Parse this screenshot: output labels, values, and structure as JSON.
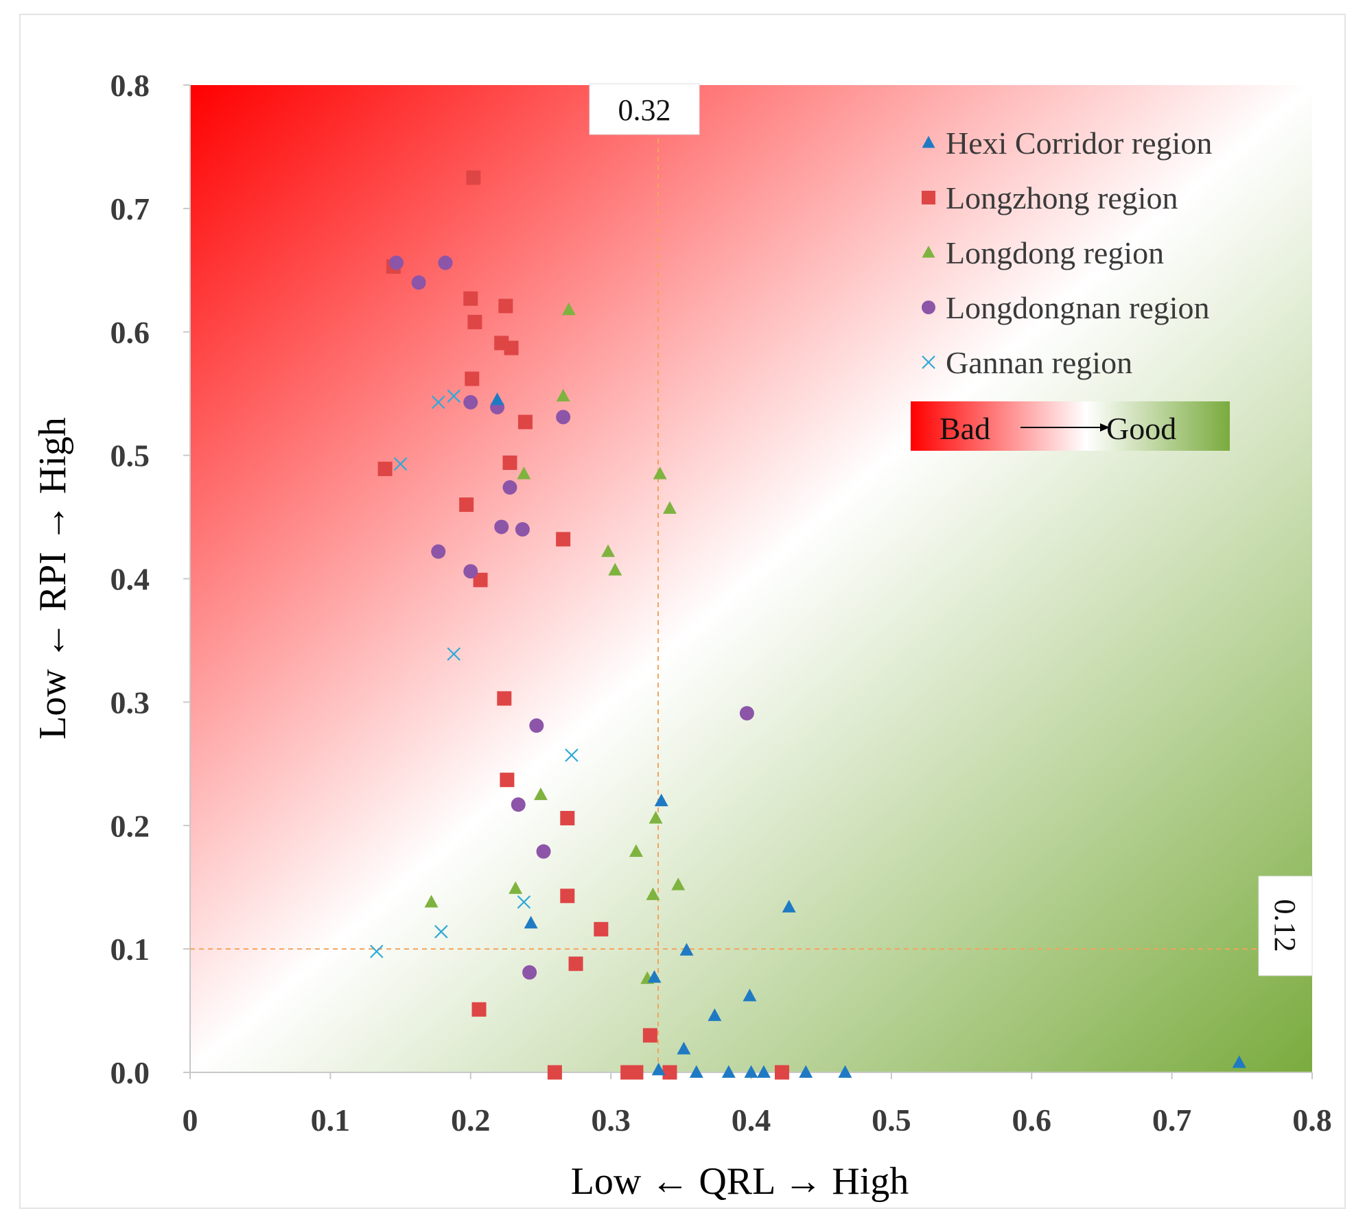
{
  "chart_data": {
    "type": "scatter",
    "title": "",
    "xlabel": "Low ← QRL → High",
    "ylabel": "Low ← RPI → High",
    "xlim": [
      0,
      0.8
    ],
    "ylim": [
      0,
      0.8
    ],
    "xticks": [
      0,
      0.1,
      0.2,
      0.3,
      0.4,
      0.5,
      0.6,
      0.7,
      0.8
    ],
    "xtick_labels": [
      "0",
      "0.1",
      "0.2",
      "0.3",
      "0.4",
      "0.5",
      "0.6",
      "0.7",
      "0.8"
    ],
    "yticks": [
      0,
      0.1,
      0.2,
      0.3,
      0.4,
      0.5,
      0.6,
      0.7,
      0.8
    ],
    "ytick_labels": [
      "0.0",
      "0.1",
      "0.2",
      "0.3",
      "0.4",
      "0.5",
      "0.6",
      "0.7",
      "0.8"
    ],
    "background_gradient": {
      "from_label": "Bad",
      "to_label": "Good",
      "from_color": "#ff0000",
      "mid_color": "#ffffff",
      "to_color": "#7aab3e"
    },
    "reference_lines": [
      {
        "axis": "x",
        "value": 0.32,
        "label": "0.32",
        "color": "#f4a35c"
      },
      {
        "axis": "y",
        "value": 0.12,
        "label": "0.12",
        "color": "#f4a35c"
      }
    ],
    "series": [
      {
        "name": "Hexi Corridor region",
        "marker": "triangle",
        "color": "#1f7ac3",
        "points": [
          [
            0.219,
            0.545
          ],
          [
            0.243,
            0.121
          ],
          [
            0.331,
            0.077
          ],
          [
            0.336,
            0.22
          ],
          [
            0.354,
            0.099
          ],
          [
            0.352,
            0.019
          ],
          [
            0.334,
            0.002
          ],
          [
            0.361,
            0.0
          ],
          [
            0.374,
            0.046
          ],
          [
            0.384,
            0.0
          ],
          [
            0.399,
            0.062
          ],
          [
            0.4,
            0.0
          ],
          [
            0.409,
            0.0
          ],
          [
            0.427,
            0.134
          ],
          [
            0.439,
            0.0
          ],
          [
            0.467,
            0.0
          ],
          [
            0.748,
            0.008
          ]
        ]
      },
      {
        "name": "Longzhong region",
        "marker": "square",
        "color": "#de4545",
        "points": [
          [
            0.202,
            0.725
          ],
          [
            0.145,
            0.653
          ],
          [
            0.2,
            0.627
          ],
          [
            0.225,
            0.621
          ],
          [
            0.203,
            0.608
          ],
          [
            0.222,
            0.591
          ],
          [
            0.229,
            0.587
          ],
          [
            0.201,
            0.562
          ],
          [
            0.239,
            0.527
          ],
          [
            0.228,
            0.494
          ],
          [
            0.139,
            0.489
          ],
          [
            0.197,
            0.46
          ],
          [
            0.266,
            0.432
          ],
          [
            0.207,
            0.399
          ],
          [
            0.224,
            0.303
          ],
          [
            0.226,
            0.237
          ],
          [
            0.269,
            0.206
          ],
          [
            0.269,
            0.143
          ],
          [
            0.293,
            0.116
          ],
          [
            0.275,
            0.088
          ],
          [
            0.206,
            0.051
          ],
          [
            0.328,
            0.03
          ],
          [
            0.26,
            0.0
          ],
          [
            0.312,
            0.0
          ],
          [
            0.318,
            0.0
          ],
          [
            0.342,
            0.0
          ],
          [
            0.422,
            0.0
          ]
        ]
      },
      {
        "name": "Longdong region",
        "marker": "triangle",
        "color": "#7fb33f",
        "points": [
          [
            0.27,
            0.618
          ],
          [
            0.266,
            0.548
          ],
          [
            0.238,
            0.485
          ],
          [
            0.335,
            0.485
          ],
          [
            0.342,
            0.457
          ],
          [
            0.298,
            0.422
          ],
          [
            0.303,
            0.407
          ],
          [
            0.25,
            0.225
          ],
          [
            0.332,
            0.206
          ],
          [
            0.318,
            0.179
          ],
          [
            0.348,
            0.152
          ],
          [
            0.232,
            0.149
          ],
          [
            0.33,
            0.144
          ],
          [
            0.172,
            0.138
          ],
          [
            0.326,
            0.076
          ]
        ]
      },
      {
        "name": "Longdongnan region",
        "marker": "circle",
        "color": "#8c55a8",
        "points": [
          [
            0.147,
            0.656
          ],
          [
            0.182,
            0.656
          ],
          [
            0.163,
            0.64
          ],
          [
            0.2,
            0.543
          ],
          [
            0.219,
            0.539
          ],
          [
            0.266,
            0.531
          ],
          [
            0.228,
            0.474
          ],
          [
            0.222,
            0.442
          ],
          [
            0.237,
            0.44
          ],
          [
            0.177,
            0.422
          ],
          [
            0.2,
            0.406
          ],
          [
            0.397,
            0.291
          ],
          [
            0.247,
            0.281
          ],
          [
            0.234,
            0.217
          ],
          [
            0.252,
            0.179
          ],
          [
            0.242,
            0.081
          ]
        ]
      },
      {
        "name": "Gannan region",
        "marker": "x",
        "color": "#2ea9d8",
        "points": [
          [
            0.177,
            0.543
          ],
          [
            0.188,
            0.548
          ],
          [
            0.15,
            0.493
          ],
          [
            0.188,
            0.339
          ],
          [
            0.272,
            0.257
          ],
          [
            0.238,
            0.138
          ],
          [
            0.179,
            0.114
          ],
          [
            0.133,
            0.098
          ]
        ]
      }
    ]
  }
}
